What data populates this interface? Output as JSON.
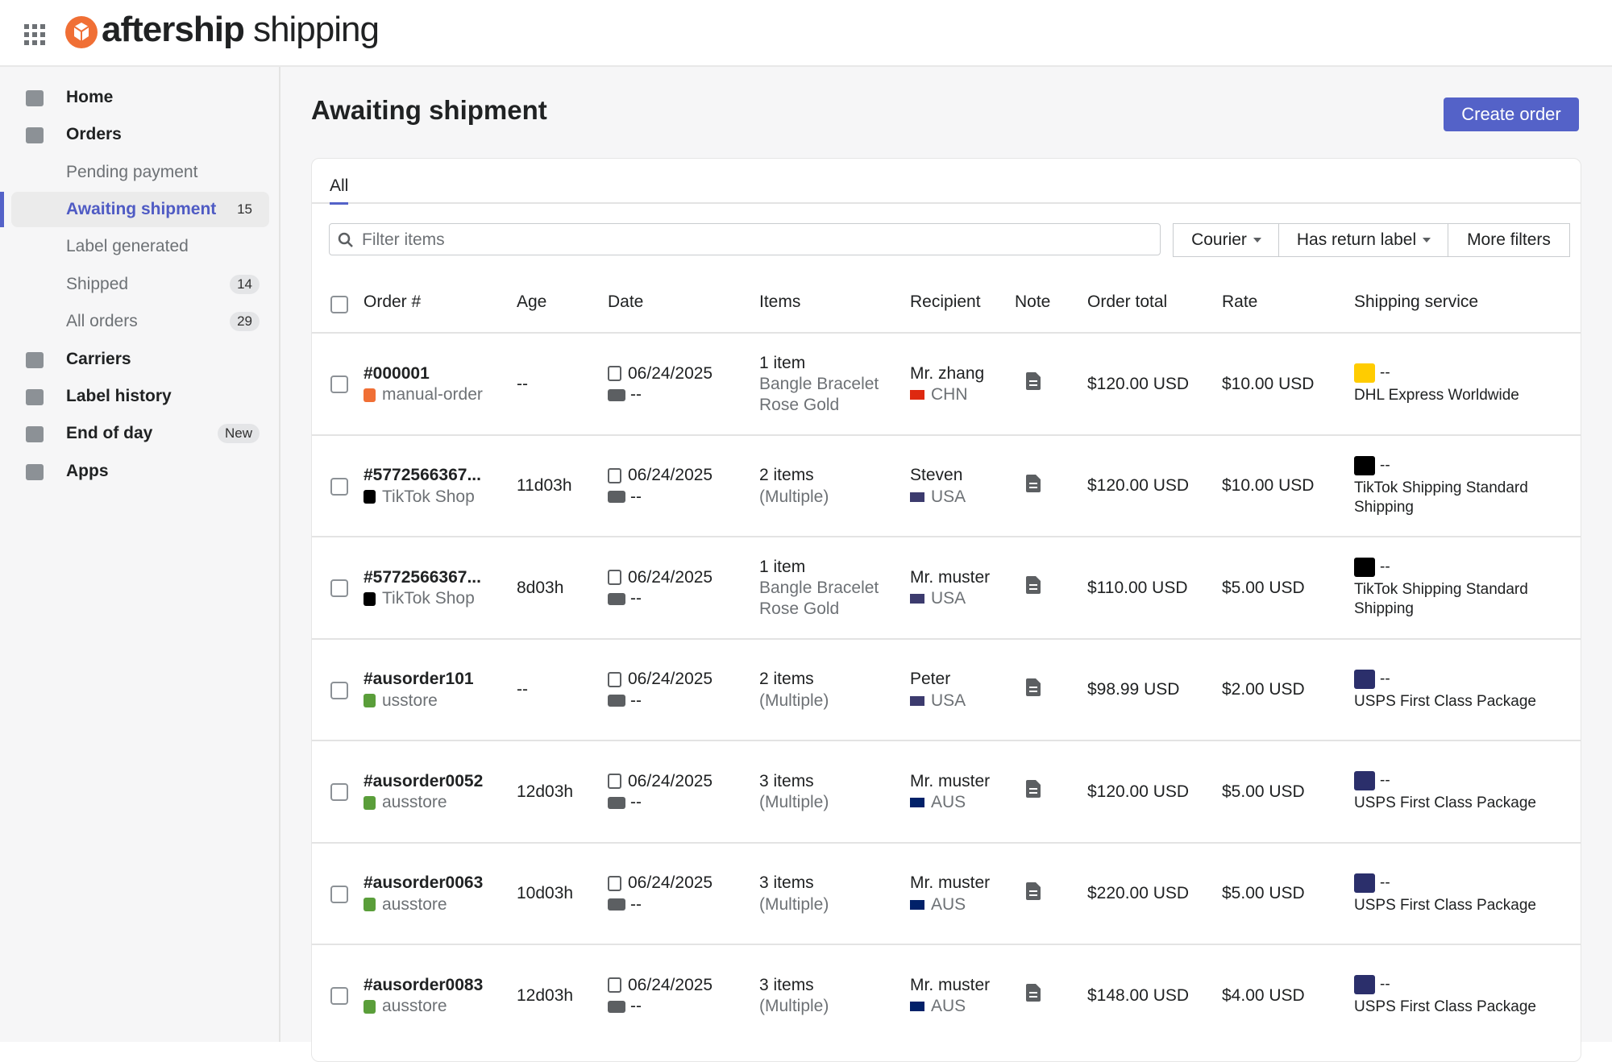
{
  "header": {
    "logo_brand": "aftership",
    "logo_product": "shipping"
  },
  "sidebar": {
    "items": [
      {
        "label": "Home",
        "level": 1
      },
      {
        "label": "Orders",
        "level": 1
      },
      {
        "label": "Pending payment",
        "level": 2
      },
      {
        "label": "Awaiting shipment",
        "level": 2,
        "badge": "15",
        "active": true
      },
      {
        "label": "Label generated",
        "level": 2
      },
      {
        "label": "Shipped",
        "level": 2,
        "badge": "14"
      },
      {
        "label": "All orders",
        "level": 2,
        "badge": "29"
      },
      {
        "label": "Carriers",
        "level": 1
      },
      {
        "label": "Label history",
        "level": 1
      },
      {
        "label": "End of day",
        "level": 1,
        "badge": "New"
      },
      {
        "label": "Apps",
        "level": 1
      }
    ]
  },
  "page": {
    "title": "Awaiting shipment",
    "create_button": "Create order"
  },
  "tabs": [
    "All"
  ],
  "filter": {
    "placeholder": "Filter items",
    "buttons": [
      "Courier",
      "Has return label",
      "More filters"
    ]
  },
  "table": {
    "columns": [
      "Order #",
      "Age",
      "Date",
      "Items",
      "Recipient",
      "Note",
      "Order total",
      "Rate",
      "Shipping service"
    ],
    "rows": [
      {
        "order": "#000001",
        "source": "manual-order",
        "age": "--",
        "date": "06/24/2025",
        "ship_date": "--",
        "items": "1 item",
        "items_detail": "Bangle Bracelet Rose Gold",
        "recipient": "Mr. zhang",
        "country": "CHN",
        "total": "$120.00 USD",
        "rate": "$10.00 USD",
        "service_code": "--",
        "service": "DHL Express Worldwide"
      },
      {
        "order": "#5772566367...",
        "source": "TikTok Shop",
        "age": "11d03h",
        "date": "06/24/2025",
        "ship_date": "--",
        "items": "2 items",
        "items_detail": "(Multiple)",
        "recipient": "Steven",
        "country": "USA",
        "total": "$120.00 USD",
        "rate": "$10.00 USD",
        "service_code": "--",
        "service": "TikTok Shipping Standard Shipping"
      },
      {
        "order": "#5772566367...",
        "source": "TikTok Shop",
        "age": "8d03h",
        "date": "06/24/2025",
        "ship_date": "--",
        "items": "1 item",
        "items_detail": "Bangle Bracelet Rose Gold",
        "recipient": "Mr. muster",
        "country": "USA",
        "total": "$110.00 USD",
        "rate": "$5.00 USD",
        "service_code": "--",
        "service": "TikTok Shipping Standard Shipping"
      },
      {
        "order": "#ausorder101",
        "source": "usstore",
        "age": "--",
        "date": "06/24/2025",
        "ship_date": "--",
        "items": "2 items",
        "items_detail": "(Multiple)",
        "recipient": "Peter",
        "country": "USA",
        "total": "$98.99 USD",
        "rate": "$2.00 USD",
        "service_code": "--",
        "service": "USPS First Class Package"
      },
      {
        "order": "#ausorder0052",
        "source": "ausstore",
        "age": "12d03h",
        "date": "06/24/2025",
        "ship_date": "--",
        "items": "3 items",
        "items_detail": "(Multiple)",
        "recipient": "Mr. muster",
        "country": "AUS",
        "total": "$120.00 USD",
        "rate": "$5.00 USD",
        "service_code": "--",
        "service": "USPS First Class Package"
      },
      {
        "order": "#ausorder0063",
        "source": "ausstore",
        "age": "10d03h",
        "date": "06/24/2025",
        "ship_date": "--",
        "items": "3 items",
        "items_detail": "(Multiple)",
        "recipient": "Mr. muster",
        "country": "AUS",
        "total": "$220.00 USD",
        "rate": "$5.00 USD",
        "service_code": "--",
        "service": "USPS First Class Package"
      },
      {
        "order": "#ausorder0083",
        "source": "ausstore",
        "age": "12d03h",
        "date": "06/24/2025",
        "ship_date": "--",
        "items": "3 items",
        "items_detail": "(Multiple)",
        "recipient": "Mr. muster",
        "country": "AUS",
        "total": "$148.00 USD",
        "rate": "$4.00 USD",
        "service_code": "--",
        "service": "USPS First Class Package"
      }
    ]
  }
}
